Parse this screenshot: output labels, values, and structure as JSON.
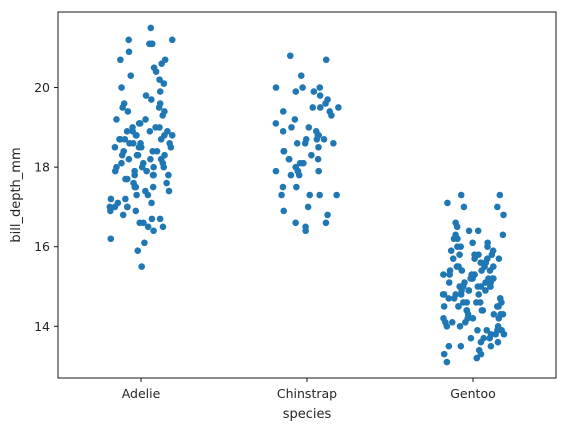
{
  "chart_data": {
    "type": "scatter",
    "subtype": "strip",
    "title": "",
    "xlabel": "species",
    "ylabel": "bill_depth_mm",
    "categories": [
      "Adelie",
      "Chinstrap",
      "Gentoo"
    ],
    "ylim": [
      12.7,
      21.9
    ],
    "yticks": [
      14,
      16,
      18,
      20
    ],
    "grid": false,
    "legend": "none",
    "marker_color": "#1f77b4",
    "series": [
      {
        "category": "Adelie",
        "values": [
          21.5,
          21.2,
          21.1,
          21.2,
          21.1,
          21.1,
          20.7,
          20.7,
          20.5,
          20.6,
          20.4,
          20.3,
          20.2,
          20.0,
          19.8,
          19.6,
          19.5,
          19.5,
          19.4,
          19.3,
          19.2,
          19.1,
          19.0,
          19.0,
          18.9,
          18.9,
          18.9,
          18.8,
          18.8,
          18.8,
          18.7,
          18.7,
          18.7,
          18.6,
          18.6,
          18.5,
          18.5,
          18.5,
          18.4,
          18.4,
          18.3,
          18.3,
          18.2,
          18.2,
          18.1,
          18.1,
          18.0,
          18.0,
          17.9,
          17.9,
          17.8,
          17.8,
          17.8,
          17.7,
          17.6,
          17.5,
          17.5,
          17.4,
          17.3,
          17.2,
          17.2,
          17.1,
          17.1,
          17.0,
          17.0,
          17.0,
          16.9,
          16.8,
          16.7,
          16.6,
          16.6,
          16.5,
          16.5,
          16.4,
          16.2,
          16.1,
          15.9,
          15.5,
          19.7,
          19.4,
          19.1,
          18.6,
          18.3,
          18.0,
          17.6,
          17.3,
          16.9,
          18.9,
          18.2,
          17.9,
          19.9,
          18.4,
          17.7,
          19.0,
          18.8,
          18.6,
          18.1,
          17.4,
          16.7,
          20.1,
          19.2,
          17.5,
          18.5,
          17.8,
          17.0,
          18.7,
          18.3,
          19.6,
          20.9,
          18.0
        ]
      },
      {
        "category": "Chinstrap",
        "values": [
          20.8,
          20.7,
          20.3,
          20.0,
          20.0,
          19.9,
          19.8,
          19.7,
          19.6,
          19.5,
          19.5,
          19.4,
          19.2,
          19.1,
          19.0,
          19.0,
          18.9,
          18.8,
          18.8,
          18.7,
          18.7,
          18.6,
          18.5,
          18.4,
          18.3,
          18.2,
          18.2,
          18.1,
          18.0,
          17.9,
          17.9,
          17.8,
          17.8,
          17.5,
          17.5,
          17.3,
          17.3,
          17.3,
          17.0,
          16.8,
          16.6,
          16.6,
          16.5,
          16.4,
          18.4,
          19.3,
          18.6,
          17.9,
          19.9,
          18.1,
          17.3,
          16.9,
          18.9,
          19.4,
          18.7,
          19.5,
          20.0,
          17.9,
          18.2,
          18.6
        ]
      },
      {
        "category": "Gentoo",
        "values": [
          17.3,
          17.3,
          17.1,
          17.0,
          17.0,
          16.8,
          16.6,
          16.5,
          16.4,
          16.3,
          16.2,
          16.1,
          16.0,
          15.9,
          15.8,
          15.8,
          15.7,
          15.7,
          15.6,
          15.5,
          15.5,
          15.4,
          15.4,
          15.3,
          15.3,
          15.2,
          15.2,
          15.1,
          15.1,
          15.0,
          15.0,
          15.0,
          14.9,
          14.9,
          14.8,
          14.8,
          14.7,
          14.7,
          14.6,
          14.6,
          14.5,
          14.5,
          14.5,
          14.4,
          14.4,
          14.3,
          14.3,
          14.2,
          14.2,
          14.1,
          14.1,
          14.0,
          14.0,
          13.9,
          13.9,
          13.8,
          13.8,
          13.7,
          13.7,
          13.6,
          13.5,
          13.5,
          13.4,
          13.3,
          13.2,
          13.1,
          15.7,
          15.2,
          14.8,
          14.4,
          15.0,
          15.5,
          16.0,
          14.6,
          15.3,
          13.9,
          14.7,
          15.1,
          16.3,
          14.2,
          15.8,
          14.5,
          15.4,
          13.8,
          15.0,
          14.9,
          15.6,
          16.2,
          14.3,
          15.2,
          13.7,
          14.8,
          15.9,
          14.0,
          15.5,
          14.6,
          15.3,
          16.1,
          14.1,
          15.0,
          13.6,
          14.5,
          15.7,
          14.8,
          16.0,
          15.1,
          14.2,
          15.4,
          13.9,
          14.7,
          15.2,
          16.4,
          14.4,
          15.6,
          14.9,
          13.5,
          15.8,
          14.6,
          15.0,
          14.3,
          13.3
        ]
      }
    ]
  }
}
